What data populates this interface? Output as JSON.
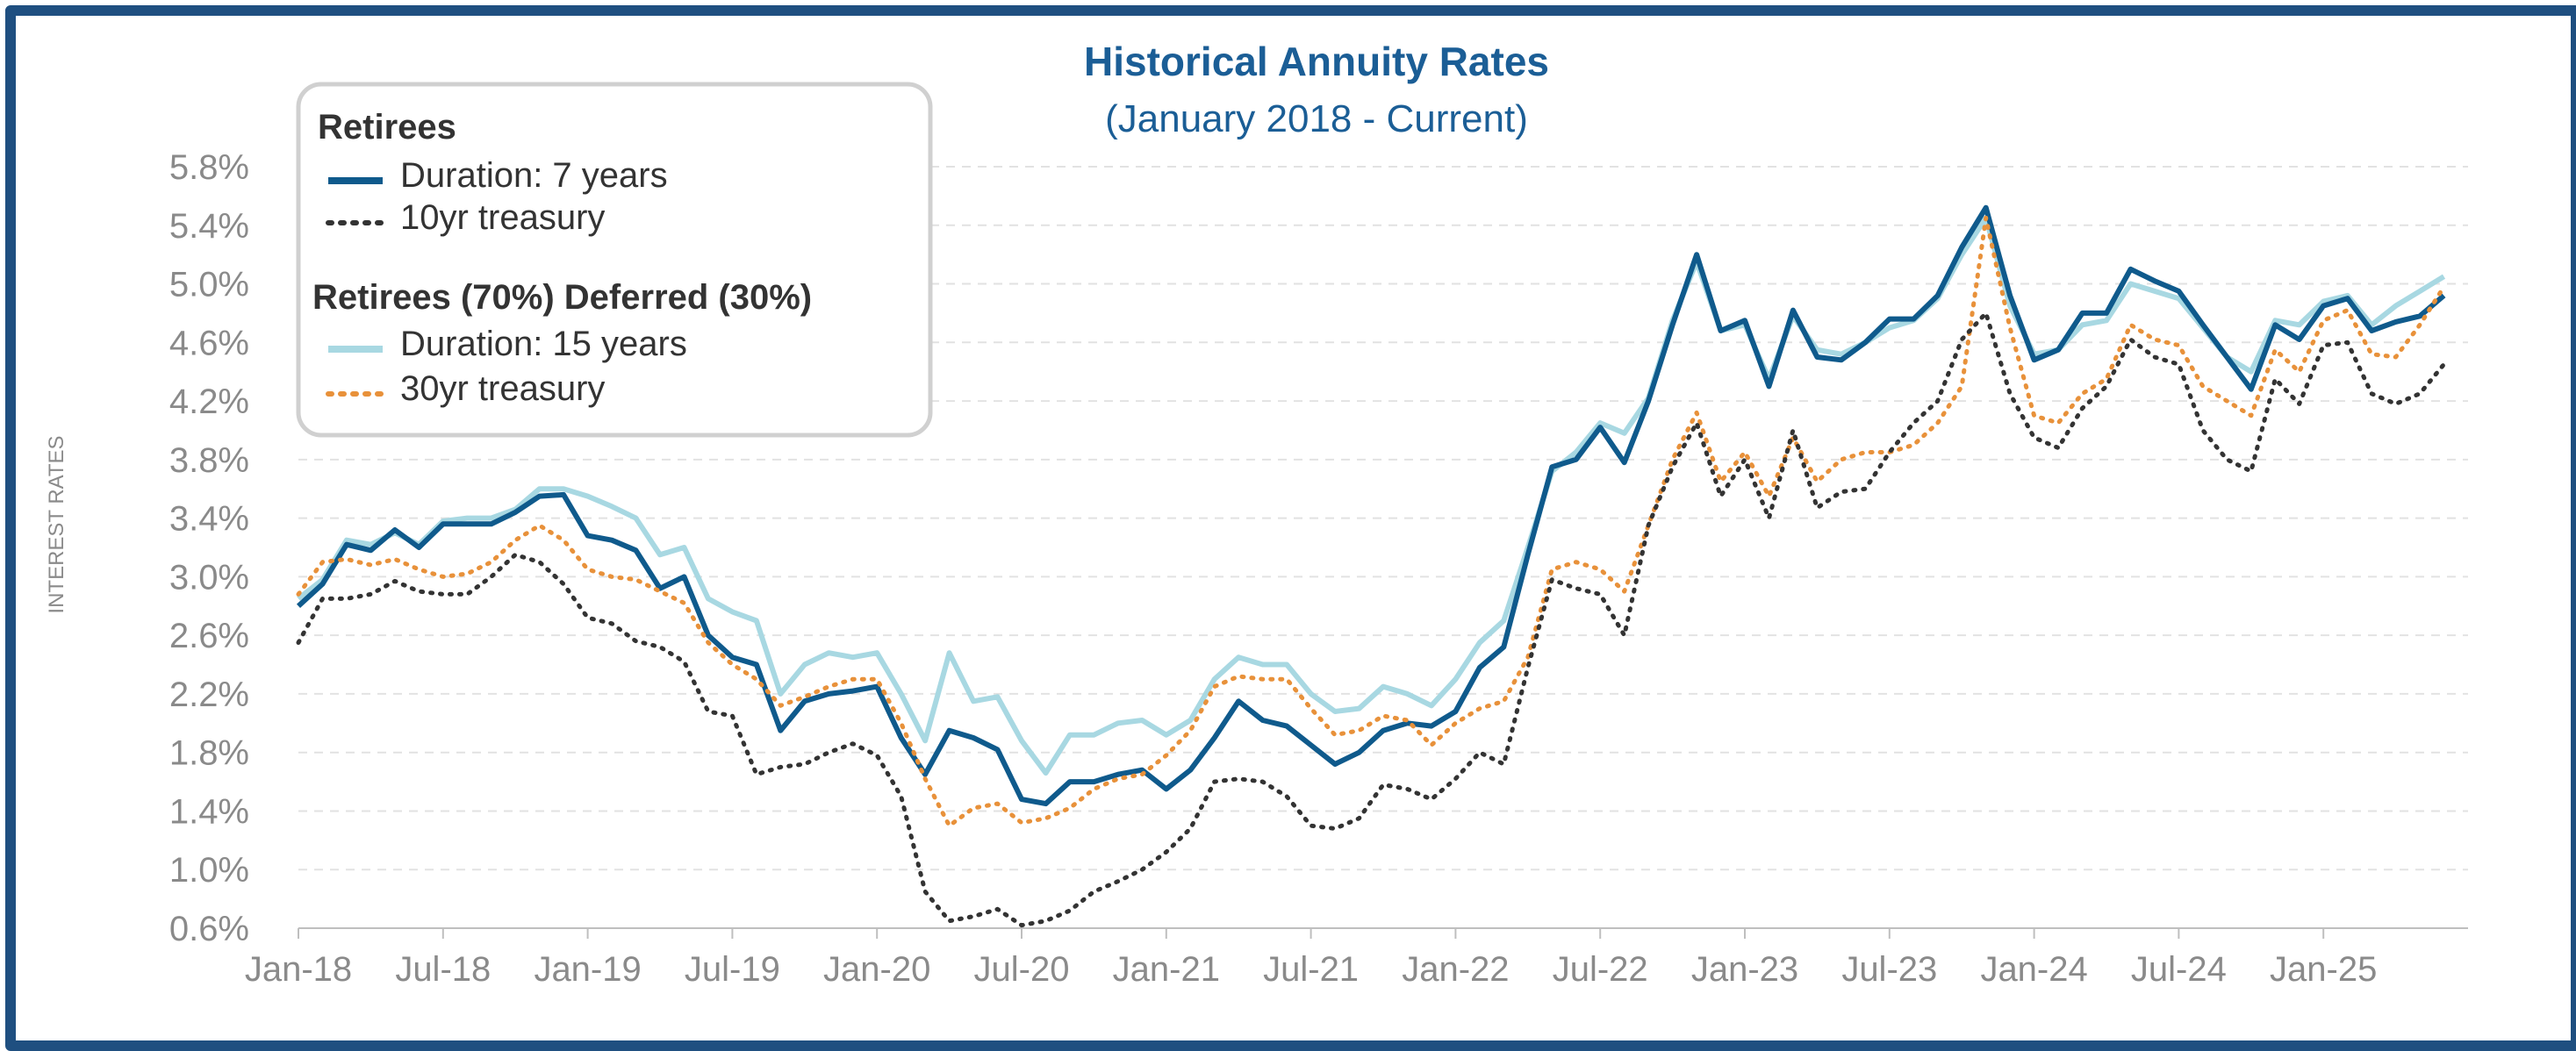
{
  "chart_data": {
    "type": "line",
    "title": "Historical Annuity Rates",
    "subtitle": "(January 2018 - Current)",
    "ylabel": "INTEREST RATES",
    "xlabel": "",
    "ylim": [
      0.6,
      5.8
    ],
    "y_ticks": [
      "0.6%",
      "1.0%",
      "1.4%",
      "1.8%",
      "2.2%",
      "2.6%",
      "3.0%",
      "3.4%",
      "3.8%",
      "4.2%",
      "4.6%",
      "5.0%",
      "5.4%",
      "5.8%"
    ],
    "x_ticks": [
      "Jan-18",
      "Jul-18",
      "Jan-19",
      "Jul-19",
      "Jan-20",
      "Jul-20",
      "Jan-21",
      "Jul-21",
      "Jan-22",
      "Jul-22",
      "Jan-23",
      "Jul-23",
      "Jan-24",
      "Jul-24",
      "Jan-25"
    ],
    "x_tick_months": [
      0,
      6,
      12,
      18,
      24,
      30,
      36,
      42,
      48,
      54,
      60,
      66,
      72,
      78,
      84
    ],
    "x_range": [
      0,
      90
    ],
    "grid": "horizontal dashed",
    "legend": {
      "placement": "top-left",
      "group1_title": "Retirees",
      "group2_title": "Retirees (70%) Deferred (30%)"
    },
    "series": [
      {
        "name": "Duration: 15 years",
        "color": "#a8d8e2",
        "style": "solid",
        "values": [
          2.85,
          2.98,
          3.25,
          3.22,
          3.3,
          3.22,
          3.38,
          3.4,
          3.4,
          3.46,
          3.6,
          3.6,
          3.55,
          3.48,
          3.4,
          3.15,
          3.2,
          2.85,
          2.76,
          2.7,
          2.2,
          2.4,
          2.48,
          2.45,
          2.48,
          2.2,
          1.88,
          2.48,
          2.15,
          2.18,
          1.88,
          1.66,
          1.92,
          1.92,
          2.0,
          2.02,
          1.92,
          2.02,
          2.3,
          2.45,
          2.4,
          2.4,
          2.2,
          2.08,
          2.1,
          2.25,
          2.2,
          2.12,
          2.3,
          2.55,
          2.7,
          3.2,
          3.72,
          3.85,
          4.05,
          3.98,
          4.22,
          4.75,
          5.15,
          4.68,
          4.72,
          4.35,
          4.78,
          4.55,
          4.52,
          4.6,
          4.7,
          4.75,
          4.9,
          5.2,
          5.45,
          4.85,
          4.52,
          4.55,
          4.72,
          4.75,
          5.0,
          4.95,
          4.9,
          4.7,
          4.5,
          4.4,
          4.75,
          4.72,
          4.88,
          4.92,
          4.72,
          4.85,
          4.95,
          5.05
        ]
      },
      {
        "name": "Duration: 7 years",
        "color": "#0f5a8c",
        "style": "solid",
        "values": [
          2.8,
          2.95,
          3.22,
          3.18,
          3.32,
          3.2,
          3.36,
          3.36,
          3.36,
          3.44,
          3.55,
          3.56,
          3.28,
          3.25,
          3.18,
          2.92,
          3.0,
          2.6,
          2.45,
          2.4,
          1.95,
          2.15,
          2.2,
          2.22,
          2.25,
          1.9,
          1.65,
          1.95,
          1.9,
          1.82,
          1.48,
          1.45,
          1.6,
          1.6,
          1.65,
          1.68,
          1.55,
          1.68,
          1.9,
          2.15,
          2.02,
          1.98,
          1.85,
          1.72,
          1.8,
          1.95,
          2.0,
          1.98,
          2.08,
          2.38,
          2.52,
          3.15,
          3.75,
          3.8,
          4.02,
          3.78,
          4.2,
          4.72,
          5.2,
          4.68,
          4.75,
          4.3,
          4.82,
          4.5,
          4.48,
          4.6,
          4.76,
          4.76,
          4.92,
          5.25,
          5.52,
          4.92,
          4.48,
          4.55,
          4.8,
          4.8,
          5.1,
          5.02,
          4.95,
          4.72,
          4.5,
          4.28,
          4.72,
          4.62,
          4.85,
          4.9,
          4.68,
          4.74,
          4.78,
          4.92
        ]
      },
      {
        "name": "30yr treasury",
        "color": "#e8913a",
        "style": "dotted",
        "values": [
          2.88,
          3.1,
          3.12,
          3.08,
          3.12,
          3.05,
          3.0,
          3.02,
          3.1,
          3.25,
          3.35,
          3.25,
          3.05,
          3.0,
          2.98,
          2.9,
          2.82,
          2.55,
          2.4,
          2.3,
          2.12,
          2.18,
          2.25,
          2.3,
          2.3,
          2.0,
          1.62,
          1.3,
          1.42,
          1.45,
          1.32,
          1.35,
          1.42,
          1.55,
          1.62,
          1.65,
          1.78,
          1.95,
          2.25,
          2.32,
          2.3,
          2.3,
          2.1,
          1.92,
          1.95,
          2.05,
          2.02,
          1.85,
          2.0,
          2.1,
          2.15,
          2.45,
          3.05,
          3.1,
          3.05,
          2.9,
          3.35,
          3.8,
          4.12,
          3.65,
          3.85,
          3.55,
          3.95,
          3.65,
          3.8,
          3.85,
          3.85,
          3.9,
          4.05,
          4.3,
          5.45,
          4.7,
          4.1,
          4.05,
          4.25,
          4.35,
          4.72,
          4.62,
          4.58,
          4.3,
          4.2,
          4.1,
          4.55,
          4.4,
          4.75,
          4.82,
          4.52,
          4.5,
          4.72,
          4.98
        ]
      },
      {
        "name": "10yr treasury",
        "color": "#333333",
        "style": "dotted",
        "values": [
          2.55,
          2.85,
          2.85,
          2.88,
          2.97,
          2.9,
          2.88,
          2.88,
          3.0,
          3.15,
          3.1,
          2.95,
          2.72,
          2.68,
          2.56,
          2.52,
          2.42,
          2.08,
          2.05,
          1.65,
          1.7,
          1.72,
          1.8,
          1.86,
          1.78,
          1.5,
          0.85,
          0.65,
          0.68,
          0.73,
          0.62,
          0.65,
          0.72,
          0.85,
          0.92,
          1.0,
          1.12,
          1.28,
          1.6,
          1.62,
          1.6,
          1.5,
          1.3,
          1.28,
          1.35,
          1.58,
          1.55,
          1.48,
          1.62,
          1.8,
          1.72,
          2.38,
          2.98,
          2.92,
          2.88,
          2.6,
          3.35,
          3.75,
          4.05,
          3.55,
          3.8,
          3.4,
          4.0,
          3.47,
          3.58,
          3.6,
          3.85,
          4.05,
          4.2,
          4.62,
          4.8,
          4.25,
          3.95,
          3.88,
          4.15,
          4.3,
          4.62,
          4.5,
          4.45,
          4.0,
          3.8,
          3.72,
          4.35,
          4.18,
          4.58,
          4.6,
          4.25,
          4.18,
          4.25,
          4.45
        ]
      }
    ]
  }
}
